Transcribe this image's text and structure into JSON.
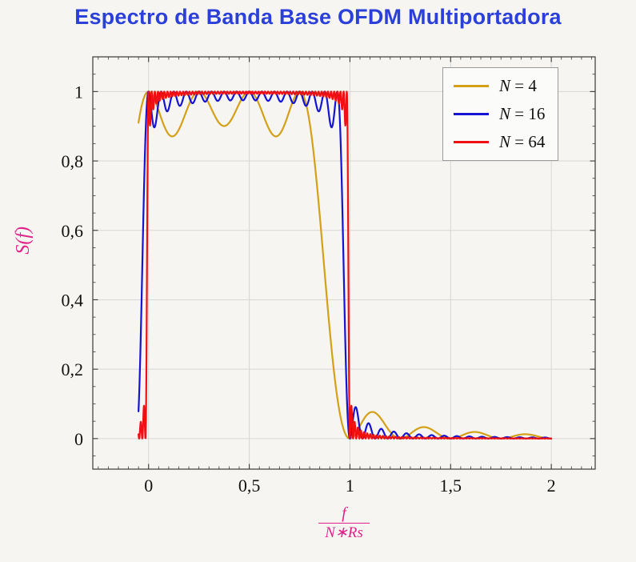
{
  "chart_data": {
    "type": "line",
    "title": "Espectro de Banda Base OFDM Multiportadora",
    "ylabel": "S(f)",
    "xlabel_numerator": "f",
    "xlabel_denominator": "N∗Rs",
    "x_view": [
      -0.277,
      2.218
    ],
    "y_view": [
      -0.088,
      1.1
    ],
    "x_ticks": [
      {
        "v": 0,
        "label": "0"
      },
      {
        "v": 0.5,
        "label": "0,5"
      },
      {
        "v": 1,
        "label": "1"
      },
      {
        "v": 1.5,
        "label": "1,5"
      },
      {
        "v": 2,
        "label": "2"
      }
    ],
    "y_ticks": [
      {
        "v": 0,
        "label": "0"
      },
      {
        "v": 0.2,
        "label": "0,2"
      },
      {
        "v": 0.4,
        "label": "0,4"
      },
      {
        "v": 0.6,
        "label": "0,6"
      },
      {
        "v": 0.8,
        "label": "0,8"
      },
      {
        "v": 1,
        "label": "1"
      }
    ],
    "x_major_step": 0.5,
    "y_major_step": 0.2,
    "x_minor_step": 0.05,
    "y_minor_step": 0.05,
    "grid": true,
    "legend": {
      "position": "top-right",
      "entries": [
        "N = 4",
        "N = 16",
        "N = 64"
      ]
    },
    "series": [
      {
        "name": "N = 4",
        "N": 4,
        "color": "#D4A017",
        "passband_ripple_min": 0.87,
        "first_sidelobe_peak": 0.055,
        "first_sidelobe_x": 1.11
      },
      {
        "name": "N = 16",
        "N": 16,
        "color": "#1414D2",
        "passband_ripple_min": 0.93,
        "first_sidelobe_peak": 0.08,
        "first_sidelobe_x": 1.03
      },
      {
        "name": "N = 64",
        "N": 64,
        "color": "#EF1111",
        "passband_ripple_min": 0.96,
        "first_sidelobe_peak": 0.03,
        "first_sidelobe_x": 1.01
      }
    ],
    "band_edges": [
      0,
      1
    ],
    "model": {
      "formula": "S(x) = sum_{k=0}^{N-1} sinc^2(N*x - k), sinc(t) = sin(pi*t)/(pi*t)",
      "x_start": -0.05,
      "x_end": 2.0,
      "samples": 2000
    },
    "colors": {
      "title": "#2B3FD9",
      "axis_label": "#E0218A",
      "grid": "#d6d6d6",
      "frame": "#3a3a3a",
      "tick_text": "#111111",
      "legend_border": "#9a9a9a",
      "legend_bg": "#fbfbf9"
    }
  }
}
